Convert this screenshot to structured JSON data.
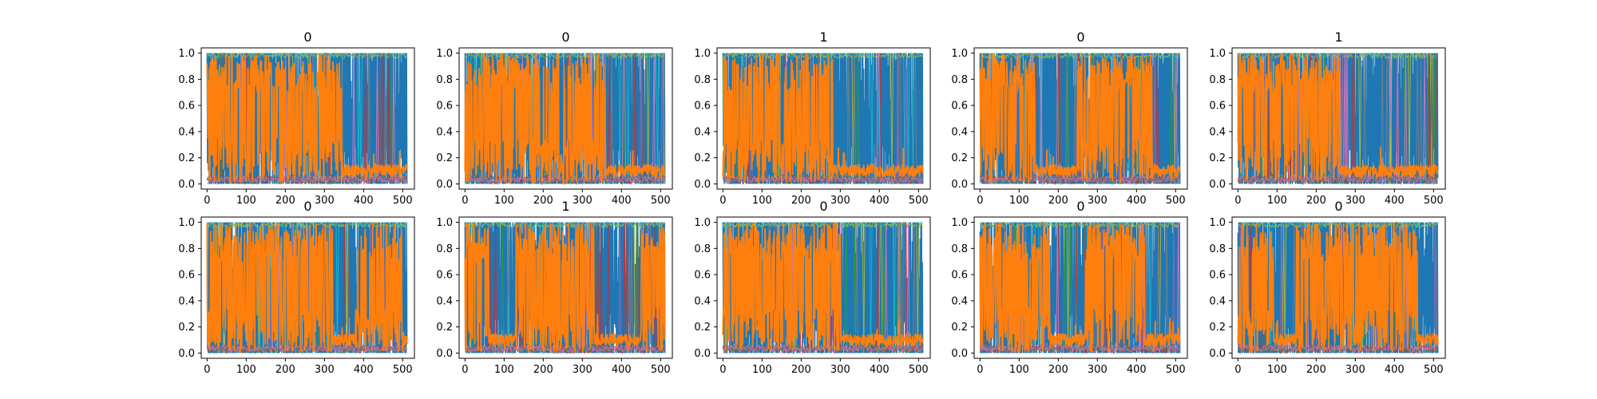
{
  "figure": {
    "layout": {
      "rows": 2,
      "cols": 5
    },
    "background": "#ffffff"
  },
  "chart_data": [
    {
      "type": "line",
      "title": "0",
      "xlim": [
        -15,
        530
      ],
      "ylim": [
        -0.04,
        1.04
      ],
      "xticks": [
        "0",
        "100",
        "200",
        "300",
        "400",
        "500"
      ],
      "yticks": [
        "0.0",
        "0.2",
        "0.4",
        "0.6",
        "0.8",
        "1.0"
      ],
      "orange_regime_segments": [
        [
          0,
          345,
          0.55
        ]
      ],
      "x_range": [
        0,
        511
      ]
    },
    {
      "type": "line",
      "title": "0",
      "xlim": [
        -15,
        530
      ],
      "ylim": [
        -0.04,
        1.04
      ],
      "xticks": [
        "0",
        "100",
        "200",
        "300",
        "400",
        "500"
      ],
      "yticks": [
        "0.0",
        "0.2",
        "0.4",
        "0.6",
        "0.8",
        "1.0"
      ],
      "orange_regime_segments": [
        [
          0,
          170,
          0.6
        ],
        [
          170,
          360,
          0.35
        ]
      ],
      "x_range": [
        0,
        511
      ]
    },
    {
      "type": "line",
      "title": "1",
      "xlim": [
        -15,
        530
      ],
      "ylim": [
        -0.04,
        1.04
      ],
      "xticks": [
        "0",
        "100",
        "200",
        "300",
        "400",
        "500"
      ],
      "yticks": [
        "0.0",
        "0.2",
        "0.4",
        "0.6",
        "0.8",
        "1.0"
      ],
      "orange_regime_segments": [
        [
          0,
          280,
          0.45
        ]
      ],
      "x_range": [
        0,
        511
      ]
    },
    {
      "type": "line",
      "title": "0",
      "xlim": [
        -15,
        530
      ],
      "ylim": [
        -0.04,
        1.04
      ],
      "xticks": [
        "0",
        "100",
        "200",
        "300",
        "400",
        "500"
      ],
      "yticks": [
        "0.0",
        "0.2",
        "0.4",
        "0.6",
        "0.8",
        "1.0"
      ],
      "orange_regime_segments": [
        [
          0,
          140,
          0.55
        ],
        [
          250,
          440,
          0.55
        ]
      ],
      "x_range": [
        0,
        511
      ]
    },
    {
      "type": "line",
      "title": "1",
      "xlim": [
        -15,
        530
      ],
      "ylim": [
        -0.04,
        1.04
      ],
      "xticks": [
        "0",
        "100",
        "200",
        "300",
        "400",
        "500"
      ],
      "yticks": [
        "0.0",
        "0.2",
        "0.4",
        "0.6",
        "0.8",
        "1.0"
      ],
      "orange_regime_segments": [
        [
          0,
          260,
          0.6
        ]
      ],
      "x_range": [
        0,
        511
      ]
    },
    {
      "type": "line",
      "title": "0",
      "xlim": [
        -15,
        530
      ],
      "ylim": [
        -0.04,
        1.04
      ],
      "xticks": [
        "0",
        "100",
        "200",
        "300",
        "400",
        "500"
      ],
      "yticks": [
        "0.0",
        "0.2",
        "0.4",
        "0.6",
        "0.8",
        "1.0"
      ],
      "orange_regime_segments": [
        [
          0,
          320,
          0.5
        ],
        [
          380,
          500,
          0.3
        ]
      ],
      "x_range": [
        0,
        511
      ]
    },
    {
      "type": "line",
      "title": "1",
      "xlim": [
        -15,
        530
      ],
      "ylim": [
        -0.04,
        1.04
      ],
      "xticks": [
        "0",
        "100",
        "200",
        "300",
        "400",
        "500"
      ],
      "yticks": [
        "0.0",
        "0.2",
        "0.4",
        "0.6",
        "0.8",
        "1.0"
      ],
      "orange_regime_segments": [
        [
          0,
          60,
          0.6
        ],
        [
          130,
          330,
          0.45
        ],
        [
          450,
          511,
          0.5
        ]
      ],
      "x_range": [
        0,
        511
      ]
    },
    {
      "type": "line",
      "title": "0",
      "xlim": [
        -15,
        530
      ],
      "ylim": [
        -0.04,
        1.04
      ],
      "xticks": [
        "0",
        "100",
        "200",
        "300",
        "400",
        "500"
      ],
      "yticks": [
        "0.0",
        "0.2",
        "0.4",
        "0.6",
        "0.8",
        "1.0"
      ],
      "orange_regime_segments": [
        [
          0,
          300,
          0.5
        ]
      ],
      "x_range": [
        0,
        511
      ]
    },
    {
      "type": "line",
      "title": "0",
      "xlim": [
        -15,
        530
      ],
      "ylim": [
        -0.04,
        1.04
      ],
      "xticks": [
        "0",
        "100",
        "200",
        "300",
        "400",
        "500"
      ],
      "yticks": [
        "0.0",
        "0.2",
        "0.4",
        "0.6",
        "0.8",
        "1.0"
      ],
      "orange_regime_segments": [
        [
          0,
          180,
          0.5
        ],
        [
          270,
          420,
          0.55
        ]
      ],
      "x_range": [
        0,
        511
      ]
    },
    {
      "type": "line",
      "title": "0",
      "xlim": [
        -15,
        530
      ],
      "ylim": [
        -0.04,
        1.04
      ],
      "xticks": [
        "0",
        "100",
        "200",
        "300",
        "400",
        "500"
      ],
      "yticks": [
        "0.0",
        "0.2",
        "0.4",
        "0.6",
        "0.8",
        "1.0"
      ],
      "orange_regime_segments": [
        [
          0,
          90,
          0.4
        ],
        [
          150,
          460,
          0.5
        ]
      ],
      "x_range": [
        0,
        511
      ]
    }
  ],
  "series_colors": {
    "dominant_blue": "#1f77b4",
    "dominant_orange": "#ff7f0e",
    "accents": [
      "#17becf",
      "#bcbd22",
      "#2ca02c",
      "#d62728",
      "#9467bd",
      "#8c564b",
      "#e377c2",
      "#7f7f7f"
    ]
  }
}
